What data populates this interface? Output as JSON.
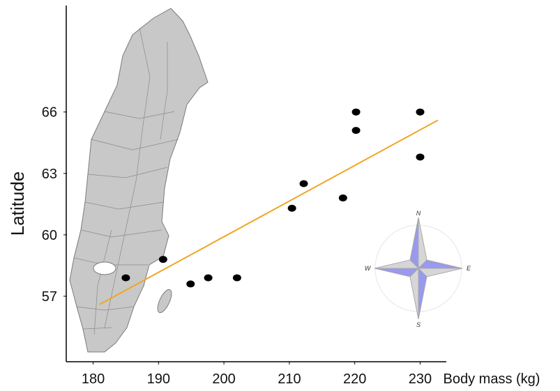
{
  "chart_data": {
    "type": "scatter",
    "x_label": "Body mass (kg)",
    "y_label": "Latitude",
    "x": [
      185,
      190.7,
      194.9,
      197.6,
      202,
      210.4,
      212.2,
      218.2,
      220.2,
      220.2,
      230,
      230
    ],
    "series": [
      {
        "color": "#000000",
        "values": [
          57.9,
          58.8,
          57.6,
          57.9,
          57.9,
          61.3,
          62.5,
          61.8,
          66,
          65.1,
          66,
          63.8
        ]
      }
    ],
    "trend_line": {
      "color": "#f0a623",
      "x": [
        181,
        232.7
      ],
      "y": [
        56.6,
        65.6
      ]
    },
    "xlim": [
      176,
      234
    ],
    "ylim": [
      53.8,
      71.2
    ],
    "xticks": [
      180,
      190,
      200,
      210,
      220,
      230
    ],
    "yticks": [
      57,
      60,
      63,
      66
    ],
    "compass": {
      "labels": [
        "N",
        "E",
        "S",
        "W"
      ]
    }
  }
}
